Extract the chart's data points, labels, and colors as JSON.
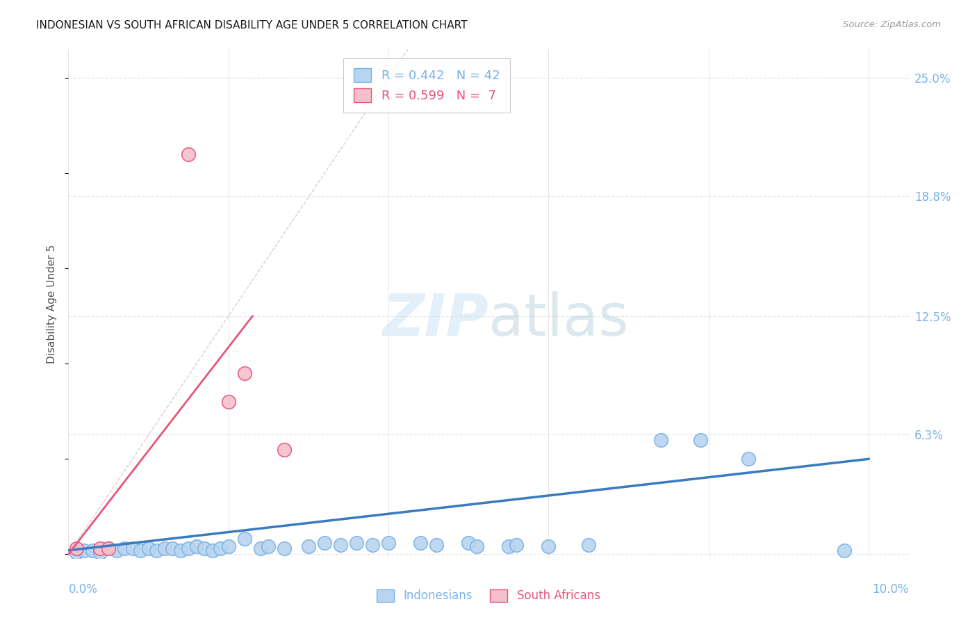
{
  "title": "INDONESIAN VS SOUTH AFRICAN DISABILITY AGE UNDER 5 CORRELATION CHART",
  "source": "Source: ZipAtlas.com",
  "ylabel": "Disability Age Under 5",
  "xlim": [
    0.0,
    0.105
  ],
  "ylim": [
    -0.002,
    0.265
  ],
  "ytick_vals": [
    0.0,
    0.063,
    0.125,
    0.188,
    0.25
  ],
  "ytick_labels": [
    "",
    "6.3%",
    "12.5%",
    "18.8%",
    "25.0%"
  ],
  "xtick_left": "0.0%",
  "xtick_right": "10.0%",
  "indonesian_points": [
    [
      0.001,
      0.001
    ],
    [
      0.002,
      0.002
    ],
    [
      0.003,
      0.002
    ],
    [
      0.004,
      0.001
    ],
    [
      0.005,
      0.003
    ],
    [
      0.006,
      0.002
    ],
    [
      0.007,
      0.003
    ],
    [
      0.008,
      0.003
    ],
    [
      0.009,
      0.002
    ],
    [
      0.01,
      0.003
    ],
    [
      0.011,
      0.002
    ],
    [
      0.012,
      0.003
    ],
    [
      0.013,
      0.003
    ],
    [
      0.014,
      0.002
    ],
    [
      0.015,
      0.003
    ],
    [
      0.016,
      0.004
    ],
    [
      0.017,
      0.003
    ],
    [
      0.018,
      0.002
    ],
    [
      0.019,
      0.003
    ],
    [
      0.02,
      0.004
    ],
    [
      0.022,
      0.008
    ],
    [
      0.024,
      0.003
    ],
    [
      0.025,
      0.004
    ],
    [
      0.027,
      0.003
    ],
    [
      0.03,
      0.004
    ],
    [
      0.032,
      0.006
    ],
    [
      0.034,
      0.005
    ],
    [
      0.036,
      0.006
    ],
    [
      0.038,
      0.005
    ],
    [
      0.04,
      0.006
    ],
    [
      0.044,
      0.006
    ],
    [
      0.046,
      0.005
    ],
    [
      0.05,
      0.006
    ],
    [
      0.051,
      0.004
    ],
    [
      0.055,
      0.004
    ],
    [
      0.056,
      0.005
    ],
    [
      0.06,
      0.004
    ],
    [
      0.065,
      0.005
    ],
    [
      0.074,
      0.06
    ],
    [
      0.079,
      0.06
    ],
    [
      0.085,
      0.05
    ],
    [
      0.097,
      0.002
    ]
  ],
  "south_african_points": [
    [
      0.001,
      0.003
    ],
    [
      0.004,
      0.003
    ],
    [
      0.005,
      0.003
    ],
    [
      0.015,
      0.21
    ],
    [
      0.02,
      0.08
    ],
    [
      0.022,
      0.095
    ],
    [
      0.027,
      0.055
    ]
  ],
  "blue_face": "#b8d4ee",
  "blue_edge": "#7ab3e8",
  "pink_face": "#f5c0cc",
  "pink_edge": "#e8547a",
  "trend_blue": "#3a7abf",
  "trend_pink": "#e8547a",
  "diag_color": "#ddbbcc",
  "grid_color": "#e5e5e5",
  "tick_label_color": "#7ab3e8",
  "background": "#ffffff",
  "r_blue": 0.442,
  "n_blue": 42,
  "r_pink": 0.599,
  "n_pink": 7,
  "title_fontsize": 11,
  "source_fontsize": 9.5,
  "axis_label_fontsize": 11,
  "tick_fontsize": 12
}
